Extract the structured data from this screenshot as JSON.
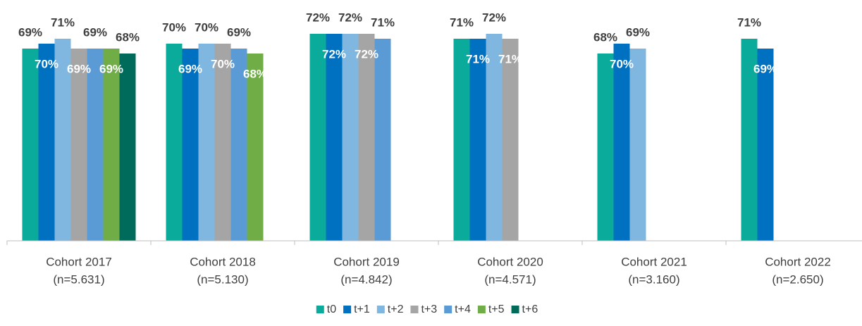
{
  "chart_data": {
    "type": "bar",
    "categories": [
      [
        "Cohort 2017",
        "(n=5.631)"
      ],
      [
        "Cohort 2018",
        "(n=5.130)"
      ],
      [
        "Cohort 2019",
        "(n=4.842)"
      ],
      [
        "Cohort 2020",
        "(n=4.571)"
      ],
      [
        "Cohort 2021",
        "(n=3.160)"
      ],
      [
        "Cohort 2022",
        "(n=2.650)"
      ]
    ],
    "series": [
      {
        "name": "t0",
        "color": "#0bab9c",
        "values": [
          69,
          70,
          72,
          71,
          68,
          71
        ],
        "value_labels": [
          "69%",
          "70%",
          "72%",
          "71%",
          "68%",
          "71%"
        ]
      },
      {
        "name": "t+1",
        "color": "#0070c0",
        "values": [
          70,
          69,
          72,
          71,
          70,
          69
        ],
        "value_labels": [
          "70%",
          "69%",
          "72%",
          "71%",
          "70%",
          "69%"
        ]
      },
      {
        "name": "t+2",
        "color": "#7fb7e1",
        "values": [
          71,
          70,
          72,
          72,
          69,
          null
        ],
        "value_labels": [
          "71%",
          "70%",
          "72%",
          "72%",
          "69%",
          null
        ]
      },
      {
        "name": "t+3",
        "color": "#a5a5a5",
        "values": [
          69,
          70,
          72,
          71,
          null,
          null
        ],
        "value_labels": [
          "69%",
          "70%",
          "72%",
          "71%",
          null,
          null
        ]
      },
      {
        "name": "t+4",
        "color": "#5b9bd5",
        "values": [
          69,
          69,
          71,
          null,
          null,
          null
        ],
        "value_labels": [
          "69%",
          "69%",
          "71%",
          null,
          null,
          null
        ]
      },
      {
        "name": "t+5",
        "color": "#70ad47",
        "values": [
          69,
          68,
          null,
          null,
          null,
          null
        ],
        "value_labels": [
          "69%",
          "68%",
          null,
          null,
          null,
          null
        ]
      },
      {
        "name": "t+6",
        "color": "#006b5a",
        "values": [
          68,
          null,
          null,
          null,
          null,
          null
        ],
        "value_labels": [
          "68%",
          null,
          null,
          null,
          null,
          null
        ]
      }
    ],
    "ylim": [
      30,
      78
    ],
    "legend": "bottom"
  }
}
